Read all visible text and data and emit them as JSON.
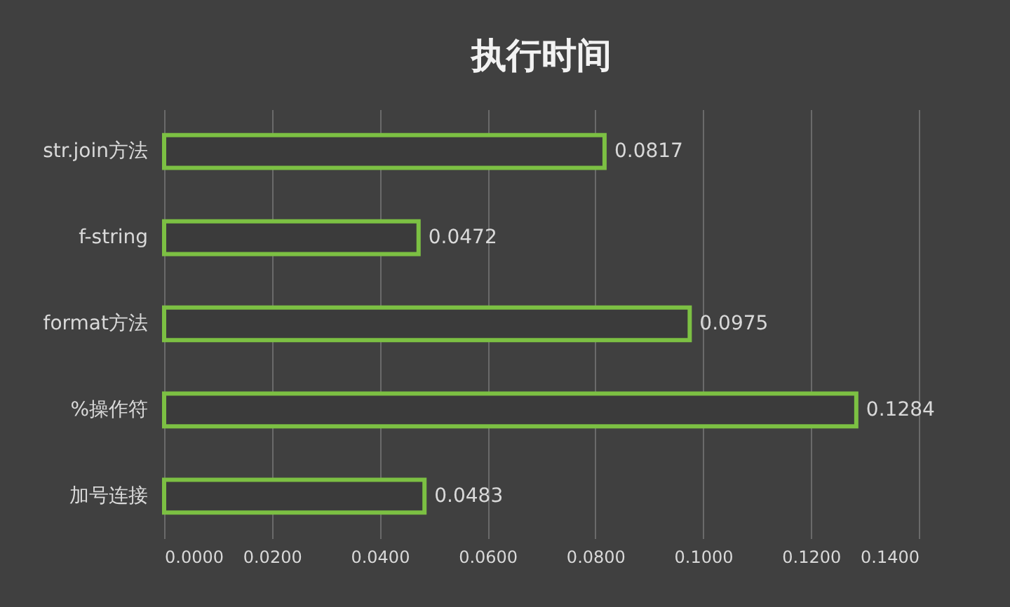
{
  "chart_data": {
    "type": "bar",
    "orientation": "horizontal",
    "title": "执行时间",
    "categories": [
      "str.join方法",
      "f-string",
      "format方法",
      "%操作符",
      "加号连接"
    ],
    "values": [
      0.0817,
      0.0472,
      0.0975,
      0.1284,
      0.0483
    ],
    "color": "#7cc043",
    "xlim": [
      0,
      0.14
    ],
    "xticks": [
      {
        "value": 0,
        "label": "0.0000"
      },
      {
        "value": 0.02,
        "label": "0.0200"
      },
      {
        "value": 0.04,
        "label": "0.0400"
      },
      {
        "value": 0.06,
        "label": "0.0600"
      },
      {
        "value": 0.08,
        "label": "0.0800"
      },
      {
        "value": 0.1,
        "label": "0.1000"
      },
      {
        "value": 0.12,
        "label": "0.1200"
      },
      {
        "value": 0.14,
        "label": "0.1400"
      }
    ],
    "data_labels": true,
    "grid": "x"
  }
}
